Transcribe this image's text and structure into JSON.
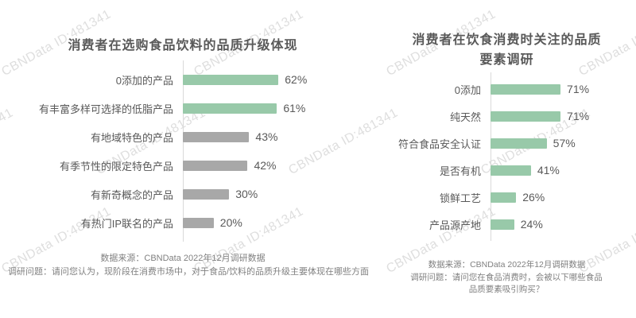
{
  "watermark": {
    "text": "CBNData ID:481341",
    "color": "#d9d9d9"
  },
  "colors": {
    "green": "#98c9a9",
    "gray": "#a8a8a8",
    "axis": "#d9d9d9",
    "text": "#595959",
    "footer": "#808080"
  },
  "chart_data": [
    {
      "type": "bar",
      "orientation": "horizontal",
      "title": "消费者在选购食品饮料的品质升级体现",
      "categories": [
        "0添加的产品",
        "有丰富多样可选择的低脂产品",
        "有地域特色的产品",
        "有季节性的限定特色产品",
        "有新奇概念的产品",
        "有热门IP联名的产品"
      ],
      "values": [
        62,
        61,
        43,
        42,
        30,
        20
      ],
      "value_labels": [
        "62%",
        "61%",
        "43%",
        "42%",
        "30%",
        "20%"
      ],
      "bar_colors": [
        "#98c9a9",
        "#98c9a9",
        "#a8a8a8",
        "#a8a8a8",
        "#a8a8a8",
        "#a8a8a8"
      ],
      "xlim": [
        0,
        100
      ],
      "grid": false,
      "legend": false,
      "source": "数据来源：CBNData 2022年12月调研数据",
      "question": "调研问题：请问您认为，现阶段在消费市场中，对于食品/饮料的品质升级主要体现在哪些方面"
    },
    {
      "type": "bar",
      "orientation": "horizontal",
      "title": "消费者在饮食消费时关注的品质要素调研",
      "categories": [
        "0添加",
        "纯天然",
        "符合食品安全认证",
        "是否有机",
        "锁鲜工艺",
        "产品源产地"
      ],
      "values": [
        71,
        71,
        57,
        41,
        26,
        24
      ],
      "value_labels": [
        "71%",
        "71%",
        "57%",
        "41%",
        "26%",
        "24%"
      ],
      "bar_colors": [
        "#98c9a9",
        "#98c9a9",
        "#98c9a9",
        "#98c9a9",
        "#98c9a9",
        "#98c9a9"
      ],
      "xlim": [
        0,
        100
      ],
      "grid": false,
      "legend": false,
      "source": "数据来源：CBNData 2022年12月调研数据",
      "question": "调研问题：请问您在食品消费时，会被以下哪些食品品质要素吸引购买？"
    }
  ]
}
